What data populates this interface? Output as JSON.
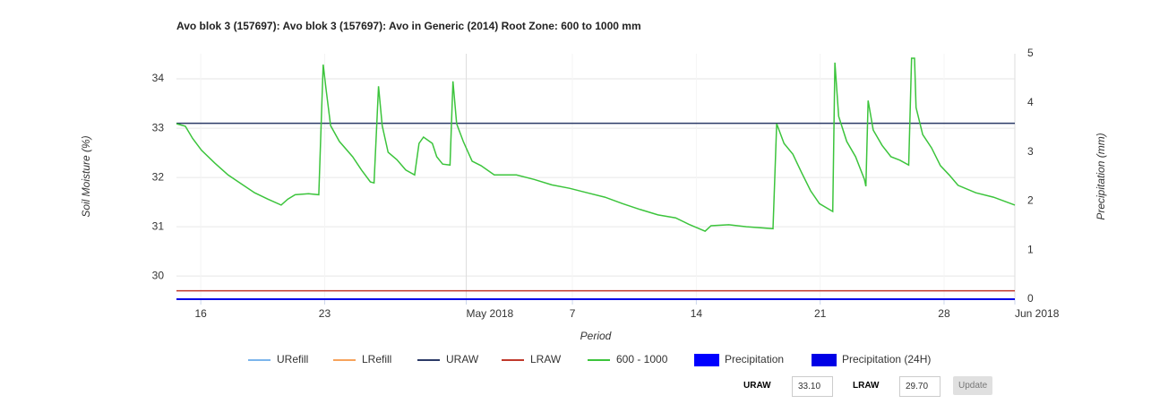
{
  "chart_data": {
    "type": "line",
    "title": "Avo blok 3 (157697): Avo blok 3 (157697): Avo in Generic (2014) Root Zone: 600 to 1000 mm",
    "xlabel": "Period",
    "ylabel": "Soil Moisture (%)",
    "y2label": "Precipitation (mm)",
    "xlim": [
      "2018-04-14T15:00",
      "2018-06-01T00:00"
    ],
    "xticks": [
      {
        "value": "2018-04-16T00:00",
        "label": "16"
      },
      {
        "value": "2018-04-23T00:00",
        "label": "23"
      },
      {
        "value": "2018-05-01T00:00",
        "label": "May 2018"
      },
      {
        "value": "2018-05-07T00:00",
        "label": "7"
      },
      {
        "value": "2018-05-14T00:00",
        "label": "14"
      },
      {
        "value": "2018-05-21T00:00",
        "label": "21"
      },
      {
        "value": "2018-05-28T00:00",
        "label": "28"
      },
      {
        "value": "2018-06-01T00:00",
        "label": "Jun 2018"
      }
    ],
    "ylim": [
      29.53,
      34.51
    ],
    "yticks": [
      30,
      31,
      32,
      33,
      34
    ],
    "y2lim": [
      0,
      5
    ],
    "y2ticks": [
      0,
      1,
      2,
      3,
      4,
      5
    ],
    "grid": true,
    "legend": "bottom",
    "series": [
      {
        "name": "URefill",
        "color": "#7cb5ec",
        "x": [
          "2018-04-14T15:00",
          "2018-06-01T00:00"
        ],
        "values": [
          null,
          null
        ]
      },
      {
        "name": "LRefill",
        "color": "#f7a35c",
        "x": [
          "2018-04-14T15:00",
          "2018-06-01T00:00"
        ],
        "values": [
          null,
          null
        ]
      },
      {
        "name": "URAW",
        "color": "#2b3a67",
        "x": [
          "2018-04-14T15:00",
          "2018-06-01T00:00"
        ],
        "values": [
          33.1,
          33.1
        ]
      },
      {
        "name": "LRAW",
        "color": "#c0392b",
        "x": [
          "2018-04-14T15:00",
          "2018-06-01T00:00"
        ],
        "values": [
          29.7,
          29.7
        ]
      },
      {
        "name": "600 - 1000",
        "color": "#3cc43c",
        "x": [
          "2018-04-14T15:00",
          "2018-04-15T03:00",
          "2018-04-15T13:00",
          "2018-04-16T01:00",
          "2018-04-16T19:00",
          "2018-04-17T13:00",
          "2018-04-18T07:00",
          "2018-04-19T01:00",
          "2018-04-19T19:00",
          "2018-04-20T13:00",
          "2018-04-20T22:00",
          "2018-04-21T08:00",
          "2018-04-22T02:00",
          "2018-04-22T16:00",
          "2018-04-22T22:00",
          "2018-04-23T02:00",
          "2018-04-23T08:00",
          "2018-04-23T20:00",
          "2018-04-24T14:00",
          "2018-04-25T02:00",
          "2018-04-25T14:00",
          "2018-04-25T19:00",
          "2018-04-26T01:00",
          "2018-04-26T06:00",
          "2018-04-26T14:00",
          "2018-04-27T02:00",
          "2018-04-27T14:00",
          "2018-04-28T02:00",
          "2018-04-28T08:00",
          "2018-04-28T14:00",
          "2018-04-29T02:00",
          "2018-04-29T08:00",
          "2018-04-29T16:00",
          "2018-04-30T02:00",
          "2018-04-30T06:00",
          "2018-04-30T11:00",
          "2018-04-30T20:00",
          "2018-05-01T08:00",
          "2018-05-01T20:00",
          "2018-05-02T14:00",
          "2018-05-03T20:00",
          "2018-05-04T20:00",
          "2018-05-05T20:00",
          "2018-05-06T20:00",
          "2018-05-07T20:00",
          "2018-05-08T20:00",
          "2018-05-09T20:00",
          "2018-05-10T20:00",
          "2018-05-11T20:00",
          "2018-05-12T20:00",
          "2018-05-13T14:00",
          "2018-05-14T12:00",
          "2018-05-14T20:00",
          "2018-05-15T20:00",
          "2018-05-16T20:00",
          "2018-05-18T08:00",
          "2018-05-18T13:00",
          "2018-05-18T23:00",
          "2018-05-19T11:00",
          "2018-05-19T23:00",
          "2018-05-20T11:00",
          "2018-05-20T23:00",
          "2018-05-21T17:00",
          "2018-05-21T20:00",
          "2018-05-22T01:00",
          "2018-05-22T12:00",
          "2018-05-23T00:00",
          "2018-05-23T12:00",
          "2018-05-23T14:00",
          "2018-05-23T17:00",
          "2018-05-24T00:00",
          "2018-05-24T12:00",
          "2018-05-25T00:00",
          "2018-05-25T12:00",
          "2018-05-26T00:00",
          "2018-05-26T04:00",
          "2018-05-26T08:00",
          "2018-05-26T10:00",
          "2018-05-26T19:00",
          "2018-05-27T07:00",
          "2018-05-27T19:00",
          "2018-05-28T07:00",
          "2018-05-28T19:00",
          "2018-05-29T19:00",
          "2018-05-30T19:00",
          "2018-06-01T00:00"
        ],
        "values": [
          33.09,
          33.04,
          32.79,
          32.55,
          32.29,
          32.05,
          31.87,
          31.69,
          31.56,
          31.44,
          31.56,
          31.65,
          31.67,
          31.65,
          34.29,
          33.78,
          33.05,
          32.73,
          32.42,
          32.15,
          31.91,
          31.89,
          33.85,
          33.05,
          32.51,
          32.36,
          32.15,
          32.05,
          32.69,
          32.82,
          32.69,
          32.42,
          32.27,
          32.25,
          33.95,
          33.09,
          32.73,
          32.33,
          32.24,
          32.05,
          32.05,
          31.96,
          31.85,
          31.78,
          31.69,
          31.6,
          31.47,
          31.35,
          31.24,
          31.18,
          31.05,
          30.91,
          31.02,
          31.04,
          31.0,
          30.96,
          33.09,
          32.69,
          32.47,
          32.09,
          31.73,
          31.47,
          31.31,
          34.33,
          33.24,
          32.73,
          32.42,
          31.96,
          31.82,
          33.56,
          32.96,
          32.65,
          32.42,
          32.35,
          32.25,
          34.42,
          34.42,
          33.42,
          32.87,
          32.6,
          32.24,
          32.05,
          31.84,
          31.69,
          31.6,
          31.44
        ]
      },
      {
        "name": "Precipitation",
        "color": "#0000ff",
        "axis": "y2",
        "legend_marker": "bar",
        "x": [
          "2018-04-14T15:00",
          "2018-06-01T00:00"
        ],
        "values": [
          0,
          0
        ]
      },
      {
        "name": "Precipitation (24H)",
        "color": "#0000e6",
        "axis": "y2",
        "legend_marker": "bar",
        "x": [
          "2018-04-14T15:00",
          "2018-06-01T00:00"
        ],
        "values": [
          0,
          0
        ]
      }
    ]
  },
  "controls": {
    "upper_label": "URAW",
    "upper_value": "33.10",
    "lower_label": "LRAW",
    "lower_value": "29.70",
    "button": "Update"
  }
}
